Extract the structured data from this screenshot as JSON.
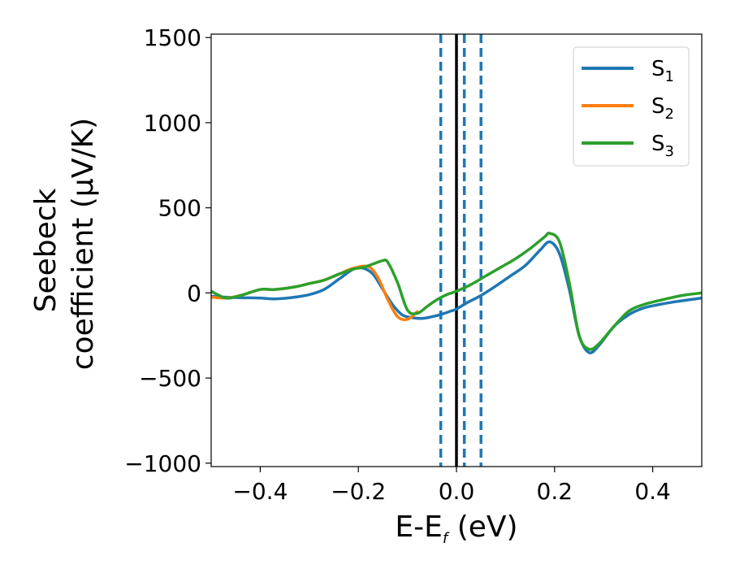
{
  "chart_data": {
    "type": "line",
    "xlabel": {
      "main": "E-E",
      "sub": "f",
      "unit": " (eV)"
    },
    "ylabel": {
      "line1": "Seebeck",
      "line2": "coefficient  (μV/K)"
    },
    "xlim": [
      -0.5,
      0.5
    ],
    "ylim": [
      -1020,
      1520
    ],
    "xticks": [
      -0.4,
      -0.2,
      0.0,
      0.2,
      0.4
    ],
    "xtick_labels": [
      "−0.4",
      "−0.2",
      "0.0",
      "0.2",
      "0.4"
    ],
    "yticks": [
      -1000,
      -500,
      0,
      500,
      1000,
      1500
    ],
    "ytick_labels": [
      "−1000",
      "−500",
      "0",
      "500",
      "1000",
      "1500"
    ],
    "grid": false,
    "legend_position": "top-right",
    "series": [
      {
        "name": "S",
        "sub": "1",
        "color": "#1f77b4",
        "x": [
          -0.5,
          -0.47,
          -0.44,
          -0.4,
          -0.37,
          -0.33,
          -0.3,
          -0.27,
          -0.24,
          -0.21,
          -0.19,
          -0.17,
          -0.15,
          -0.13,
          -0.11,
          -0.09,
          -0.07,
          -0.05,
          -0.03,
          -0.01,
          0.0,
          0.02,
          0.05,
          0.08,
          0.11,
          0.14,
          0.17,
          0.19,
          0.21,
          0.23,
          0.25,
          0.27,
          0.29,
          0.32,
          0.35,
          0.38,
          0.41,
          0.45,
          0.5
        ],
        "y": [
          -20,
          -25,
          -28,
          -30,
          -35,
          -25,
          -10,
          20,
          80,
          140,
          145,
          110,
          20,
          -70,
          -130,
          -145,
          -150,
          -140,
          -125,
          -105,
          -95,
          -60,
          -15,
          40,
          100,
          160,
          250,
          300,
          230,
          20,
          -250,
          -350,
          -310,
          -200,
          -130,
          -90,
          -70,
          -50,
          -30
        ]
      },
      {
        "name": "S",
        "sub": "2",
        "color": "#ff7f0e",
        "x": [
          -0.5,
          -0.47,
          -0.44,
          -0.4,
          -0.37,
          -0.33,
          -0.3,
          -0.27,
          -0.24,
          -0.21,
          -0.18,
          -0.16,
          -0.14,
          -0.12,
          -0.1,
          -0.08
        ],
        "y": [
          -25,
          -30,
          -15,
          20,
          20,
          35,
          55,
          75,
          110,
          145,
          155,
          90,
          -40,
          -140,
          -155,
          -110
        ]
      },
      {
        "name": "S",
        "sub": "3",
        "color": "#2ca02c",
        "x": [
          -0.5,
          -0.47,
          -0.44,
          -0.4,
          -0.37,
          -0.33,
          -0.3,
          -0.27,
          -0.24,
          -0.21,
          -0.19,
          -0.17,
          -0.15,
          -0.14,
          -0.12,
          -0.1,
          -0.08,
          -0.06,
          -0.04,
          -0.02,
          0.0,
          0.03,
          0.06,
          0.09,
          0.12,
          0.15,
          0.18,
          0.19,
          0.21,
          0.23,
          0.25,
          0.27,
          0.29,
          0.32,
          0.35,
          0.38,
          0.42,
          0.46,
          0.5
        ],
        "y": [
          10,
          -30,
          -15,
          20,
          20,
          35,
          55,
          75,
          110,
          140,
          150,
          170,
          190,
          180,
          60,
          -100,
          -120,
          -80,
          -40,
          -10,
          10,
          50,
          100,
          150,
          200,
          260,
          330,
          350,
          300,
          60,
          -250,
          -330,
          -300,
          -200,
          -110,
          -70,
          -40,
          -15,
          0
        ]
      }
    ],
    "vlines": [
      {
        "x": 0.0,
        "style": "solid",
        "color": "#000000"
      },
      {
        "x": -0.032,
        "style": "dashed",
        "color": "#1f77b4"
      },
      {
        "x": 0.016,
        "style": "dashed",
        "color": "#1f77b4"
      },
      {
        "x": 0.05,
        "style": "dashed",
        "color": "#1f77b4"
      }
    ]
  }
}
